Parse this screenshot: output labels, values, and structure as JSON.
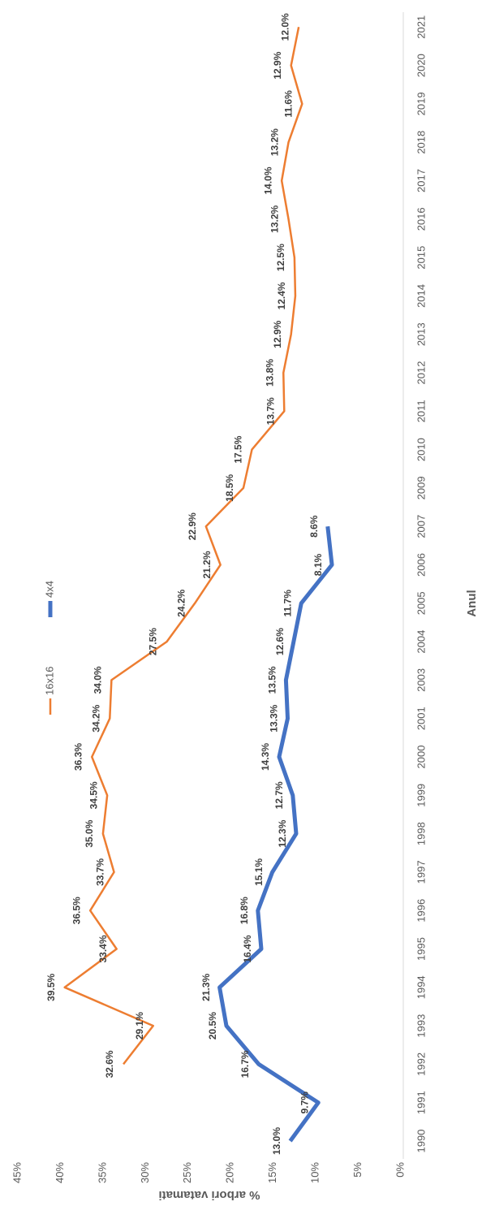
{
  "chart_data": {
    "type": "line",
    "y_label": "% arbori vatamati",
    "x_label": "Anul",
    "categories": [
      "1990",
      "1991",
      "1992",
      "1993",
      "1994",
      "1995",
      "1996",
      "1997",
      "1998",
      "1999",
      "2000",
      "2001",
      "2003",
      "2004",
      "2005",
      "2006",
      "2007",
      "2009",
      "2010",
      "2011",
      "2012",
      "2013",
      "2014",
      "2015",
      "2016",
      "2017",
      "2018",
      "2019",
      "2020",
      "2021"
    ],
    "series": [
      {
        "name": "16x16",
        "color": "#ed7d31",
        "values": [
          null,
          null,
          32.6,
          29.1,
          39.5,
          33.4,
          36.5,
          33.7,
          35.0,
          34.5,
          36.3,
          34.2,
          34.0,
          27.5,
          24.2,
          21.2,
          22.9,
          18.5,
          17.5,
          13.7,
          13.8,
          12.9,
          12.4,
          12.5,
          13.2,
          14.0,
          13.2,
          11.6,
          12.9,
          12.0
        ],
        "value_labels": [
          null,
          null,
          "32.6%",
          "29.1%",
          "39.5%",
          "33.4%",
          "36.5%",
          "33.7%",
          "35.0%",
          "34.5%",
          "36.3%",
          "34.2%",
          "34.0%",
          "27.5%",
          "24.2%",
          "21.2%",
          "22.9%",
          "18.5%",
          "17.5%",
          "13.7%",
          "13.8%",
          "12.9%",
          "12.4%",
          "12.5%",
          "13.2%",
          "14.0%",
          "13.2%",
          "11.6%",
          "12.9%",
          "12.0%"
        ]
      },
      {
        "name": "4x4",
        "color": "#4472c4",
        "values": [
          13.0,
          9.7,
          16.7,
          20.5,
          21.3,
          16.4,
          16.8,
          15.1,
          12.3,
          12.7,
          14.3,
          13.3,
          13.5,
          12.6,
          11.7,
          8.1,
          8.6,
          null,
          null,
          null,
          null,
          null,
          null,
          null,
          null,
          null,
          null,
          null,
          null,
          null
        ],
        "value_labels": [
          "13.0%",
          "9.7%",
          "16.7%",
          "20.5%",
          "21.3%",
          "16.4%",
          "16.8%",
          "15.1%",
          "12.3%",
          "12.7%",
          "14.3%",
          "13.3%",
          "13.5%",
          "12.6%",
          "11.7%",
          "8.1%",
          "8.6%",
          null,
          null,
          null,
          null,
          null,
          null,
          null,
          null,
          null,
          null,
          null,
          null,
          null
        ]
      }
    ],
    "ylim": [
      0,
      45
    ],
    "yticks": [
      {
        "value": 0,
        "label": "0%"
      },
      {
        "value": 5,
        "label": "5%"
      },
      {
        "value": 10,
        "label": "10%"
      },
      {
        "value": 15,
        "label": "15%"
      },
      {
        "value": 20,
        "label": "20%"
      },
      {
        "value": 25,
        "label": "25%"
      },
      {
        "value": 30,
        "label": "30%"
      },
      {
        "value": 35,
        "label": "35%"
      },
      {
        "value": 40,
        "label": "40%"
      },
      {
        "value": 45,
        "label": "45%"
      }
    ],
    "grid": false,
    "legend": "top"
  }
}
